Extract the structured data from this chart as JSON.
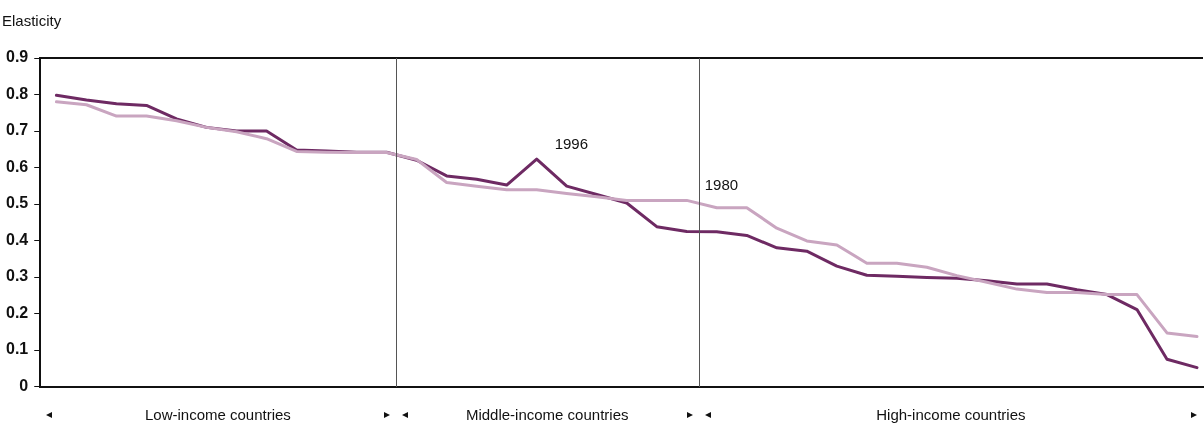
{
  "chart_data": {
    "type": "line",
    "ylabel": "Elasticity",
    "categories": [
      null,
      null,
      null,
      null,
      null,
      null,
      null,
      null,
      null,
      null,
      null,
      null,
      null,
      null,
      null,
      null,
      null,
      null,
      null,
      null,
      null,
      null,
      null,
      null,
      null,
      null,
      null,
      null,
      null,
      null,
      null,
      null,
      null,
      null,
      null,
      null,
      null,
      null,
      null
    ],
    "ylim": [
      0,
      0.9
    ],
    "yticks": [
      0,
      0.1,
      0.2,
      0.3,
      0.4,
      0.5,
      0.6,
      0.7,
      0.8,
      0.9
    ],
    "grid": false,
    "legend": false,
    "marker": "none",
    "line_style": "solid",
    "series": [
      {
        "name": "1980",
        "color": "#c9a5c0",
        "values": [
          0.78,
          0.772,
          0.741,
          0.741,
          0.728,
          0.71,
          0.698,
          0.679,
          0.644,
          0.642,
          0.641,
          0.641,
          0.622,
          0.559,
          0.549,
          0.539,
          0.539,
          0.529,
          0.52,
          0.51,
          0.51,
          0.51,
          0.49,
          0.49,
          0.434,
          0.399,
          0.388,
          0.338,
          0.338,
          0.327,
          0.304,
          0.286,
          0.267,
          0.258,
          0.258,
          0.252,
          0.252,
          0.147,
          0.137
        ]
      },
      {
        "name": "1996",
        "color": "#6e2a63",
        "values": [
          0.798,
          0.785,
          0.775,
          0.77,
          0.733,
          0.71,
          0.7,
          0.7,
          0.648,
          0.645,
          0.642,
          0.642,
          0.62,
          0.577,
          0.568,
          0.552,
          0.623,
          0.549,
          0.526,
          0.503,
          0.438,
          0.425,
          0.424,
          0.414,
          0.38,
          0.371,
          0.33,
          0.305,
          0.302,
          0.299,
          0.297,
          0.29,
          0.281,
          0.281,
          0.265,
          0.252,
          0.211,
          0.075,
          0.052
        ]
      }
    ],
    "annotations": [
      "Low-income countries",
      "Middle-income countries",
      "High-income countries"
    ]
  }
}
